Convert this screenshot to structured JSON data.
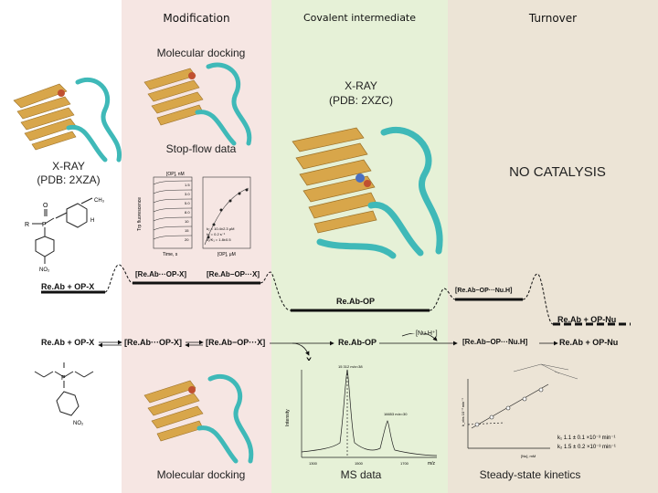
{
  "columns": {
    "modification": "Modification",
    "intermediate": "Covalent intermediate",
    "turnover": "Turnover"
  },
  "labels": {
    "docking_top": "Molecular docking",
    "xray_2xzc": "X-RAY\n(PDB: 2XZC)",
    "stopflow": "Stop-flow data",
    "xray_2xza": "X-RAY\n(PDB: 2XZA)",
    "no_catalysis": "NO CATALYSIS",
    "docking_bottom": "Molecular docking",
    "ms_data": "MS data",
    "kinetics": "Steady-state kinetics"
  },
  "energy_profile": {
    "reactant": "Re.Ab + OP-X",
    "complex": "[Re.Ab···OP-X]",
    "ts": "[Re.Ab−OP···X]",
    "intermediate": "Re.Ab-OP",
    "nu_complex": "[Re.Ab−OP···Nu.H]",
    "product": "Re.Ab + OP-Nu"
  },
  "scheme": {
    "reactant": "Re.Ab + OP-X",
    "complex": "[Re.Ab···OP-X]",
    "ts": "[Re.Ab−OP···X]",
    "leaving": "X",
    "intermediate": "Re.Ab-OP",
    "nucleophile": "[Nu.H⁺]",
    "nu_complex": "[Re.Ab−OP···Nu.H]",
    "product": "Re.Ab + OP-Nu"
  },
  "structure": {
    "top_groups": [
      "CH₃",
      "R",
      "H",
      "NO₂"
    ],
    "bottom_groups": [
      "NO₂"
    ]
  },
  "stopflow_plot": {
    "xlabel": "Time, s",
    "ylabel": "Trp fluorescence",
    "conc_header": "[OP], nM",
    "conc_values": [
      "1.5",
      "3.0",
      "5.0",
      "8.0",
      "10",
      "15",
      "20"
    ],
    "fit_text": [
      "k₂ = 10.4±2.3 μM",
      "k₂ = 0.2 s⁻¹",
      "k₂/K₁ = 1.8±0.5"
    ],
    "xlabel2": "[OP], μM"
  },
  "ms_plot": {
    "peak1": "15 312\nm/z=38",
    "peak2": "16653\nm/z=30",
    "ylabel": "Intensity",
    "xlabel": "m/z",
    "ticks": [
      "1300",
      "1500",
      "1700"
    ]
  },
  "kinetics_plot": {
    "ylabel": "k_obs 10⁻³ min⁻¹",
    "xlabel": "[Nu], mM",
    "fit1": "k₁ 1.1 ± 0.1 ×10⁻³ min⁻¹",
    "fit2": "k₂ 1.5 ± 0.2 ×10⁻³ min⁻¹"
  },
  "colors": {
    "pink": "#f6e6e3",
    "green": "#e6f1d7",
    "beige": "#ece4d6",
    "ribbon_gold": "#d8a64a",
    "ribbon_teal": "#3fb9b8"
  }
}
